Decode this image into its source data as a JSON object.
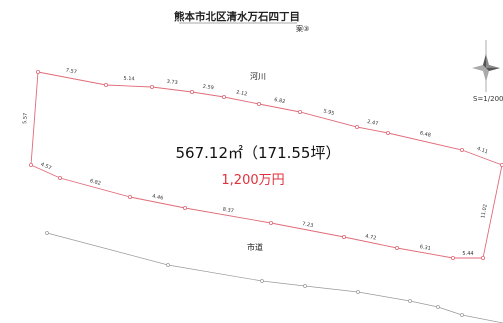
{
  "title": "熊本市北区清水万石四丁目",
  "plan_label": "案③",
  "area_text": "567.12㎡（171.55坪）",
  "price_text": "1,200万円",
  "river_label": "河川",
  "road_label": "市道",
  "scale_text": "S=1/200",
  "colors": {
    "boundary": "#e06b78",
    "vertex": "#e06b78",
    "road": "#999999",
    "price": "#e0323c"
  },
  "segments": [
    {
      "name": "seg-top-1",
      "label": "7.57"
    },
    {
      "name": "seg-top-2",
      "label": "5.14"
    },
    {
      "name": "seg-top-3",
      "label": "3.73"
    },
    {
      "name": "seg-top-4",
      "label": "2.59"
    },
    {
      "name": "seg-top-5",
      "label": "2.12"
    },
    {
      "name": "seg-top-6",
      "label": "6.82"
    },
    {
      "name": "seg-top-7",
      "label": "5.95"
    },
    {
      "name": "seg-top-8",
      "label": "2.47"
    },
    {
      "name": "seg-top-9",
      "label": "6.48"
    },
    {
      "name": "seg-top-10",
      "label": "4.11"
    },
    {
      "name": "seg-right",
      "label": "11.02"
    },
    {
      "name": "seg-bottom-1",
      "label": "5.44"
    },
    {
      "name": "seg-bottom-2",
      "label": "6.31"
    },
    {
      "name": "seg-bottom-3",
      "label": "4.72"
    },
    {
      "name": "seg-bottom-4",
      "label": "7.23"
    },
    {
      "name": "seg-bottom-5",
      "label": "8.37"
    },
    {
      "name": "seg-bottom-6",
      "label": "4.46"
    },
    {
      "name": "seg-bottom-7",
      "label": "6.82"
    },
    {
      "name": "seg-bottom-8",
      "label": "4.57"
    },
    {
      "name": "seg-left",
      "label": "5.57"
    }
  ]
}
